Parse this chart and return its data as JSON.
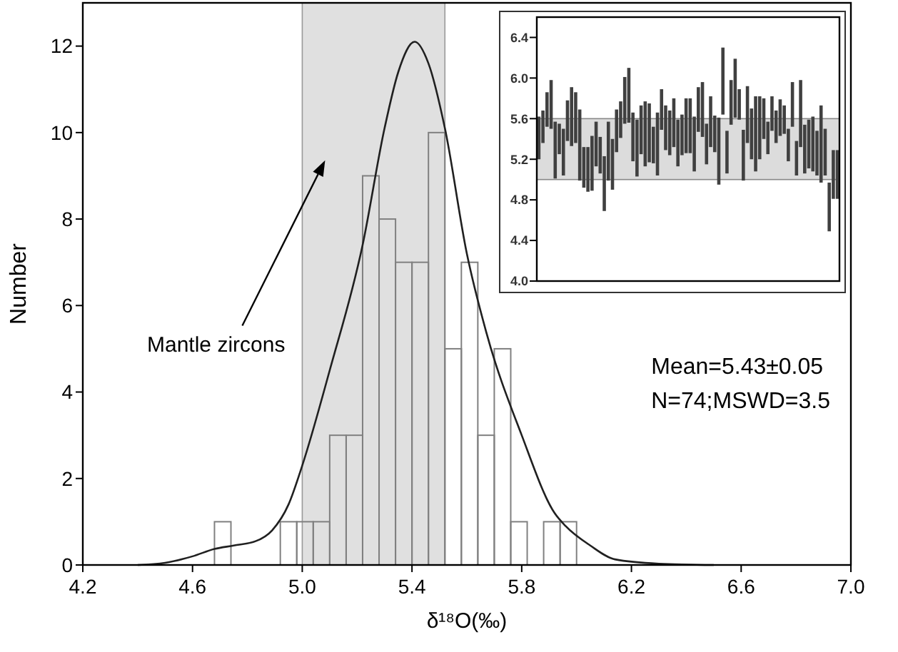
{
  "chart_data": [
    {
      "type": "histogram",
      "xlabel": "δ¹⁸O(‰)",
      "ylabel": "Number",
      "bins": [
        4.68,
        4.74,
        4.8,
        4.86,
        4.92,
        4.98,
        5.04,
        5.1,
        5.16,
        5.22,
        5.28,
        5.34,
        5.4,
        5.46,
        5.52,
        5.58,
        5.64,
        5.7,
        5.76,
        5.82,
        5.88,
        5.94,
        6.0
      ],
      "values": [
        1,
        0,
        0,
        0,
        1,
        1,
        1,
        3,
        3,
        9,
        8,
        7,
        7,
        10,
        5,
        7,
        3,
        5,
        1,
        0,
        1,
        1
      ],
      "color": "#808080",
      "series": [
        {
          "type": "line",
          "color": "#202020",
          "x": [
            4.4,
            4.5,
            4.6,
            4.68,
            4.75,
            4.83,
            4.89,
            4.95,
            5.0,
            5.1,
            5.22,
            5.3,
            5.35,
            5.41,
            5.46,
            5.52,
            5.6,
            5.67,
            5.8,
            5.92,
            5.96,
            6.05,
            6.14,
            6.3,
            6.5
          ],
          "values": [
            0,
            0.05,
            0.2,
            0.37,
            0.45,
            0.55,
            0.8,
            1.4,
            2.3,
            4.5,
            7.4,
            10.1,
            11.4,
            12.1,
            11.6,
            10.1,
            7.2,
            5.4,
            3.0,
            1.2,
            0.9,
            0.45,
            0.13,
            0.03,
            0
          ]
        }
      ],
      "xlim": [
        4.2,
        7.0
      ],
      "xticks": [
        4.2,
        4.6,
        {
          "value": 5,
          "label": "5.0"
        },
        5.4,
        5.8,
        6.2,
        6.6,
        {
          "value": 7,
          "label": "7.0"
        }
      ],
      "ylim": [
        0,
        13
      ],
      "yticks": [
        0,
        2,
        4,
        6,
        8,
        10,
        12
      ],
      "bands": [
        {
          "axis": "x",
          "from": 5.0,
          "to": 5.52,
          "label": "Mantle zircons",
          "color": "#e0e0e0"
        }
      ],
      "annotations": [
        "Mean=5.43±0.05",
        "N=74;MSWD=3.5"
      ]
    },
    {
      "type": "bar",
      "color": "#404040",
      "categories": [
        null,
        null,
        null,
        null,
        null,
        null,
        null,
        null,
        null,
        null,
        null,
        null,
        null,
        null,
        null,
        null,
        null,
        null,
        null,
        null,
        null,
        null,
        null,
        null,
        null,
        null,
        null,
        null,
        null,
        null,
        null,
        null,
        null,
        null,
        null,
        null,
        null,
        null,
        null,
        null,
        null,
        null,
        null,
        null,
        null,
        null,
        null,
        null,
        null,
        null,
        null,
        null,
        null,
        null,
        null,
        null,
        null,
        null,
        null,
        null,
        null,
        null,
        null,
        null,
        null,
        null,
        null,
        null,
        null,
        null,
        null,
        null,
        null,
        null
      ],
      "base": [
        5.2,
        5.36,
        5.52,
        5.5,
        5.01,
        5.25,
        5.04,
        5.38,
        5.33,
        5.36,
        4.99,
        4.92,
        4.88,
        4.89,
        5.13,
        5.06,
        4.69,
        4.99,
        4.9,
        5.27,
        5.41,
        5.55,
        5.56,
        5.18,
        5.03,
        5.25,
        5.13,
        5.17,
        5.16,
        5.04,
        5.49,
        5.29,
        5.24,
        5.32,
        5.13,
        5.24,
        5.26,
        5.26,
        5.08,
        5.47,
        5.42,
        5.15,
        5.32,
        5.27,
        4.95,
        5.64,
        5.06,
        5.54,
        5.61,
        5.59,
        4.99,
        5.36,
        5.2,
        5.08,
        5.2,
        5.4,
        5.25,
        5.48,
        5.36,
        5.43,
        5.45,
        5.18,
        5.52,
        5.04,
        5.32,
        5.06,
        5.11,
        5.08,
        5.04,
        4.97,
        5.04,
        4.49,
        4.81,
        4.81
      ],
      "values": [
        0.42,
        0.32,
        0.34,
        0.48,
        0.56,
        0.3,
        0.46,
        0.4,
        0.58,
        0.5,
        0.7,
        0.4,
        0.44,
        0.54,
        0.44,
        0.36,
        0.54,
        0.58,
        0.5,
        0.42,
        0.36,
        0.46,
        0.54,
        0.48,
        0.56,
        0.48,
        0.64,
        0.58,
        0.36,
        0.62,
        0.4,
        0.44,
        0.44,
        0.48,
        0.46,
        0.4,
        0.54,
        0.54,
        0.54,
        0.44,
        0.54,
        0.4,
        0.5,
        0.36,
        0.66,
        0.66,
        0.42,
        0.44,
        0.58,
        0.3,
        0.5,
        0.56,
        0.5,
        0.74,
        0.62,
        0.4,
        0.32,
        0.34,
        0.32,
        0.36,
        0.28,
        0.32,
        0.44,
        0.34,
        0.66,
        0.48,
        0.48,
        0.54,
        0.44,
        0.76,
        0.46,
        0.48,
        0.48,
        0.48
      ],
      "ylim": [
        4.0,
        6.6
      ],
      "yticks": [
        {
          "value": 4,
          "label": "4.0"
        },
        {
          "value": 4.4,
          "label": "4.4"
        },
        {
          "value": 4.8,
          "label": "4.8"
        },
        {
          "value": 5.2,
          "label": "5.2"
        },
        {
          "value": 5.6,
          "label": "5.6"
        },
        {
          "value": 6,
          "label": "6.0"
        },
        {
          "value": 6.4,
          "label": "6.4"
        }
      ],
      "bands": [
        {
          "axis": "y",
          "from": 5.0,
          "to": 5.6,
          "color": "#dcdcdc"
        }
      ]
    }
  ]
}
